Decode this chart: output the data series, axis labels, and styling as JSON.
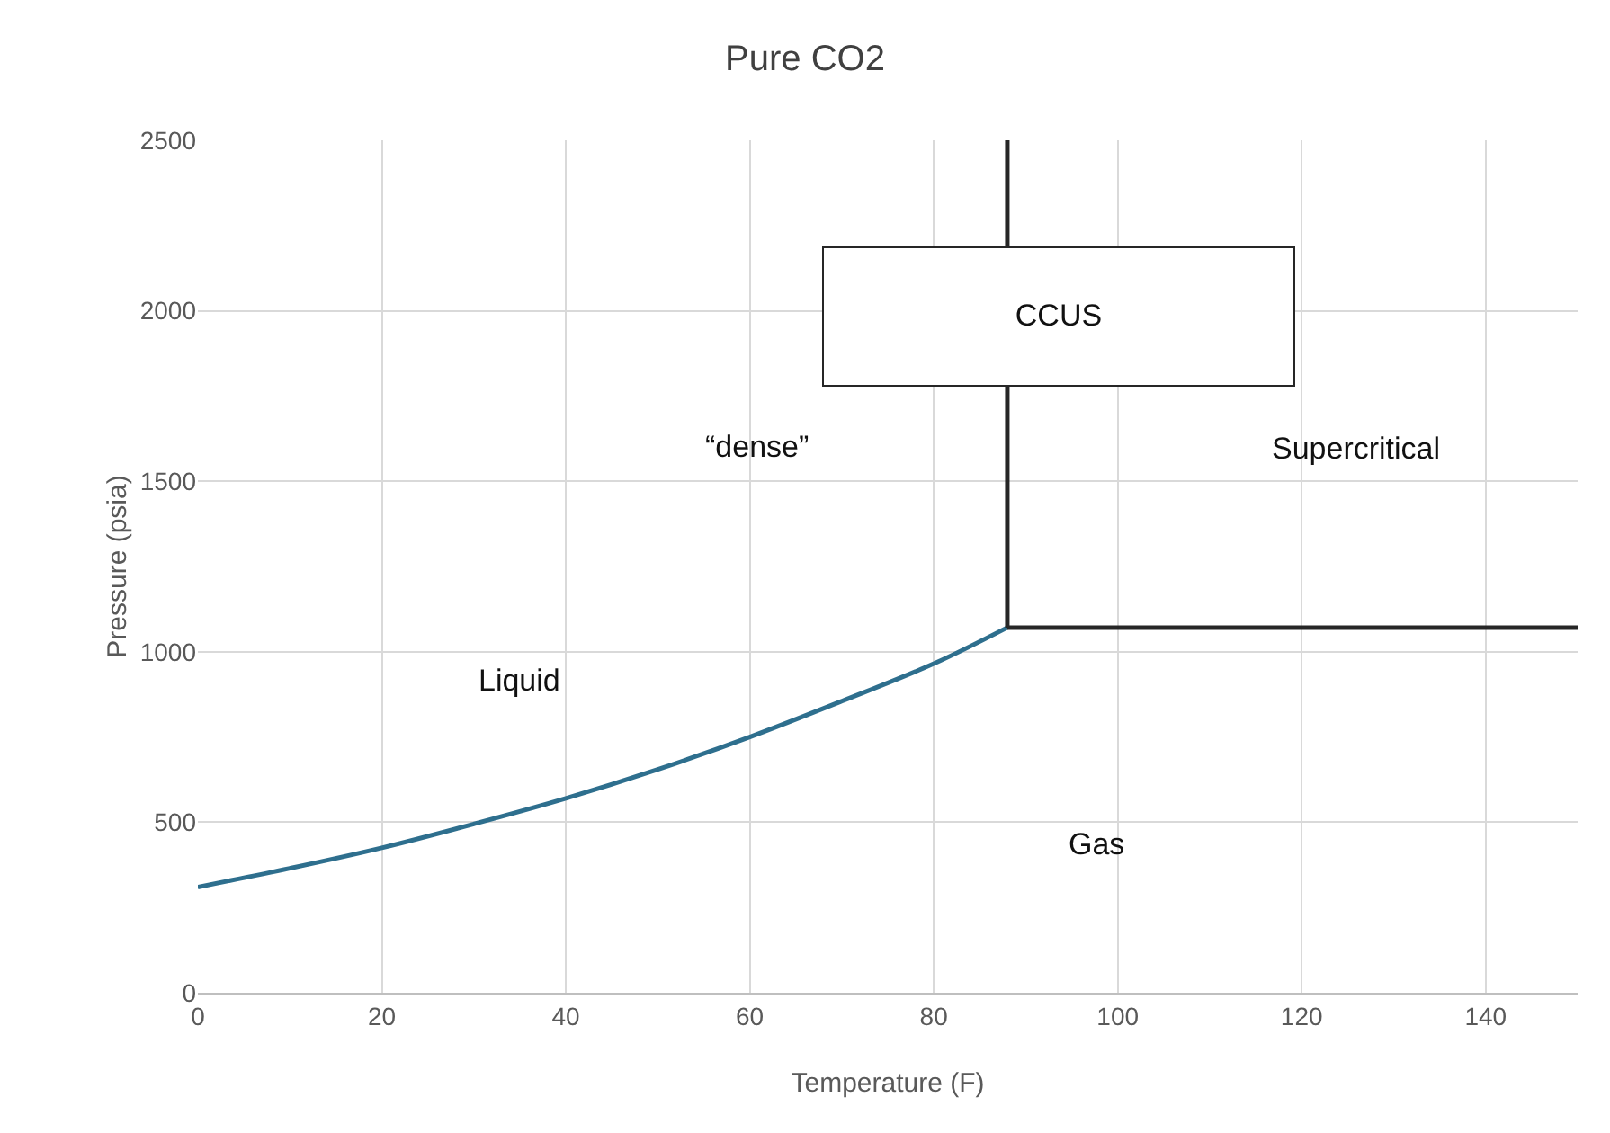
{
  "chart_data": {
    "type": "line",
    "title": "Pure CO2",
    "xlabel": "Temperature (F)",
    "ylabel": "Pressure (psia)",
    "series": [
      {
        "color": "#2e6f8e",
        "x": [
          0,
          10,
          20,
          30,
          40,
          50,
          60,
          70,
          80,
          88
        ],
        "values": [
          310,
          365,
          425,
          495,
          570,
          655,
          750,
          855,
          965,
          1071
        ]
      },
      {
        "color": "#262626",
        "x": [
          88,
          88
        ],
        "values": [
          1071,
          2500
        ]
      },
      {
        "color": "#262626",
        "x": [
          88,
          150
        ],
        "values": [
          1071,
          1071
        ]
      }
    ],
    "xlim": [
      0,
      150
    ],
    "xticks": [
      0,
      20,
      40,
      60,
      80,
      100,
      120,
      140
    ],
    "ylim": [
      0,
      2500
    ],
    "yticks": [
      0,
      500,
      1000,
      1500,
      2000,
      2500
    ],
    "grid": true,
    "marker": "none",
    "line_style": "solid",
    "annotations": [
      "CCUS",
      "Liquid",
      "“dense”",
      "Supercritical",
      "Gas"
    ]
  }
}
